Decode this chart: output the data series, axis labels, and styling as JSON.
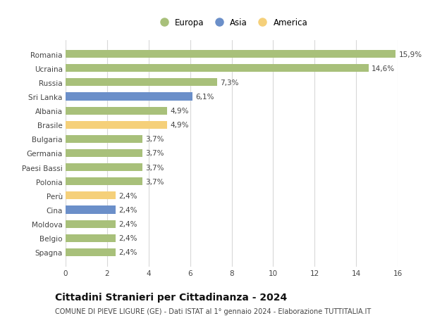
{
  "categories": [
    "Romania",
    "Ucraina",
    "Russia",
    "Sri Lanka",
    "Albania",
    "Brasile",
    "Bulgaria",
    "Germania",
    "Paesi Bassi",
    "Polonia",
    "Perù",
    "Cina",
    "Moldova",
    "Belgio",
    "Spagna"
  ],
  "values": [
    15.9,
    14.6,
    7.3,
    6.1,
    4.9,
    4.9,
    3.7,
    3.7,
    3.7,
    3.7,
    2.4,
    2.4,
    2.4,
    2.4,
    2.4
  ],
  "labels": [
    "15,9%",
    "14,6%",
    "7,3%",
    "6,1%",
    "4,9%",
    "4,9%",
    "3,7%",
    "3,7%",
    "3,7%",
    "3,7%",
    "2,4%",
    "2,4%",
    "2,4%",
    "2,4%",
    "2,4%"
  ],
  "continents": [
    "Europa",
    "Europa",
    "Europa",
    "Asia",
    "Europa",
    "America",
    "Europa",
    "Europa",
    "Europa",
    "Europa",
    "America",
    "Asia",
    "Europa",
    "Europa",
    "Europa"
  ],
  "colors": {
    "Europa": "#a8c07a",
    "Asia": "#6b8fc9",
    "America": "#f5d07a"
  },
  "xlim": [
    0,
    16
  ],
  "xticks": [
    0,
    2,
    4,
    6,
    8,
    10,
    12,
    14,
    16
  ],
  "title": "Cittadini Stranieri per Cittadinanza - 2024",
  "subtitle": "COMUNE DI PIEVE LIGURE (GE) - Dati ISTAT al 1° gennaio 2024 - Elaborazione TUTTITALIA.IT",
  "bg_color": "#ffffff",
  "grid_color": "#d8d8d8",
  "bar_height": 0.55,
  "label_fontsize": 7.5,
  "ytick_fontsize": 7.5,
  "xtick_fontsize": 7.5,
  "title_fontsize": 10,
  "subtitle_fontsize": 7,
  "legend_fontsize": 8.5
}
